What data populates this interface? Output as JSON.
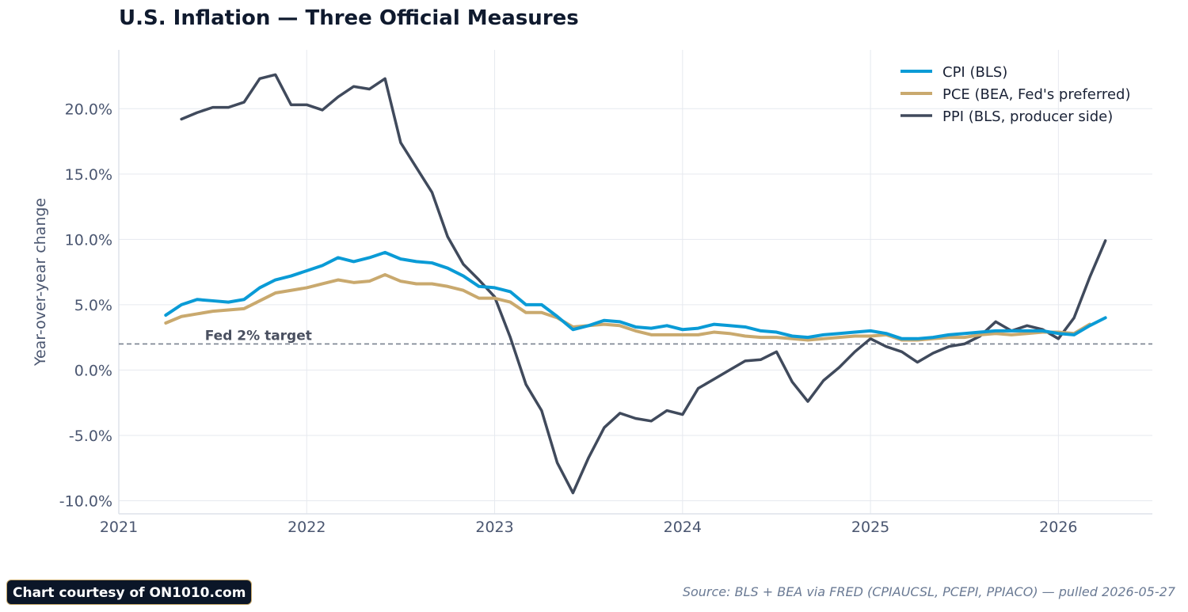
{
  "title": "U.S. Inflation — Three Official Measures",
  "footer": {
    "credit": "Chart courtesy of ON1010.com",
    "source": "Source: BLS + BEA via FRED (CPIAUCSL, PCEPI, PPIACO) — pulled 2026-05-27"
  },
  "colors": {
    "cpi": "#0a9bd6",
    "pce": "#c9a96e",
    "ppi": "#404a5c",
    "target": "#7a8290",
    "grid": "#e6e9ef",
    "axis_text": "#4a5670"
  },
  "chart_data": {
    "type": "line",
    "ylabel": "Year-over-year change",
    "xlabel": "",
    "xlim": [
      "2021-01-01",
      "2026-07-01"
    ],
    "ylim": [
      -11,
      24.5
    ],
    "x_ticks": [
      "2021",
      "2022",
      "2023",
      "2024",
      "2025",
      "2026"
    ],
    "y_ticks": [
      {
        "value": -10,
        "label": "-10.0%"
      },
      {
        "value": -5,
        "label": "-5.0%"
      },
      {
        "value": 0,
        "label": "0.0%"
      },
      {
        "value": 5,
        "label": "5.0%"
      },
      {
        "value": 10,
        "label": "10.0%"
      },
      {
        "value": 15,
        "label": "15.0%"
      },
      {
        "value": 20,
        "label": "20.0%"
      }
    ],
    "grid": true,
    "legend_position": "top-right",
    "reference_line": {
      "value": 2.0,
      "label": "Fed 2% target",
      "style": "dashed"
    },
    "series": [
      {
        "name": "CPI (BLS)",
        "start": "2021-04",
        "values": [
          4.2,
          5.0,
          5.4,
          5.3,
          5.2,
          5.4,
          6.3,
          6.9,
          7.2,
          7.6,
          8.0,
          8.6,
          8.3,
          8.6,
          9.0,
          8.5,
          8.3,
          8.2,
          7.8,
          7.2,
          6.4,
          6.3,
          6.0,
          5.0,
          5.0,
          4.1,
          3.1,
          3.4,
          3.8,
          3.7,
          3.3,
          3.2,
          3.4,
          3.1,
          3.2,
          3.5,
          3.4,
          3.3,
          3.0,
          2.9,
          2.6,
          2.5,
          2.7,
          2.8,
          2.9,
          3.0,
          2.8,
          2.4,
          2.4,
          2.5,
          2.7,
          2.8,
          2.9,
          3.0,
          3.0,
          3.0,
          3.0,
          2.8,
          2.7,
          3.4,
          4.0
        ]
      },
      {
        "name": "PCE (BEA, Fed's preferred)",
        "start": "2021-04",
        "values": [
          3.6,
          4.1,
          4.3,
          4.5,
          4.6,
          4.7,
          5.3,
          5.9,
          6.1,
          6.3,
          6.6,
          6.9,
          6.7,
          6.8,
          7.3,
          6.8,
          6.6,
          6.6,
          6.4,
          6.1,
          5.5,
          5.5,
          5.2,
          4.4,
          4.4,
          4.0,
          3.3,
          3.4,
          3.5,
          3.4,
          3.0,
          2.7,
          2.7,
          2.7,
          2.7,
          2.9,
          2.8,
          2.6,
          2.5,
          2.5,
          2.4,
          2.3,
          2.4,
          2.5,
          2.6,
          2.6,
          2.7,
          2.3,
          2.3,
          2.4,
          2.5,
          2.5,
          2.7,
          2.8,
          2.7,
          2.8,
          2.9,
          2.9,
          2.8,
          3.5
        ]
      },
      {
        "name": "PPI (BLS, producer side)",
        "start": "2021-05",
        "values": [
          19.2,
          19.7,
          20.1,
          20.1,
          20.5,
          22.3,
          22.6,
          20.3,
          20.3,
          19.9,
          20.9,
          21.7,
          21.5,
          22.3,
          17.4,
          15.5,
          13.6,
          10.2,
          8.1,
          6.9,
          5.6,
          2.5,
          -1.1,
          -3.1,
          -7.1,
          -9.4,
          -6.7,
          -4.4,
          -3.3,
          -3.7,
          -3.9,
          -3.1,
          -3.4,
          -1.4,
          -0.7,
          0.0,
          0.7,
          0.8,
          1.4,
          -0.9,
          -2.4,
          -0.8,
          0.2,
          1.4,
          2.4,
          1.8,
          1.4,
          0.6,
          1.3,
          1.8,
          2.0,
          2.6,
          3.7,
          3.0,
          3.4,
          3.1,
          2.4,
          4.0,
          7.1,
          9.9
        ]
      }
    ]
  }
}
